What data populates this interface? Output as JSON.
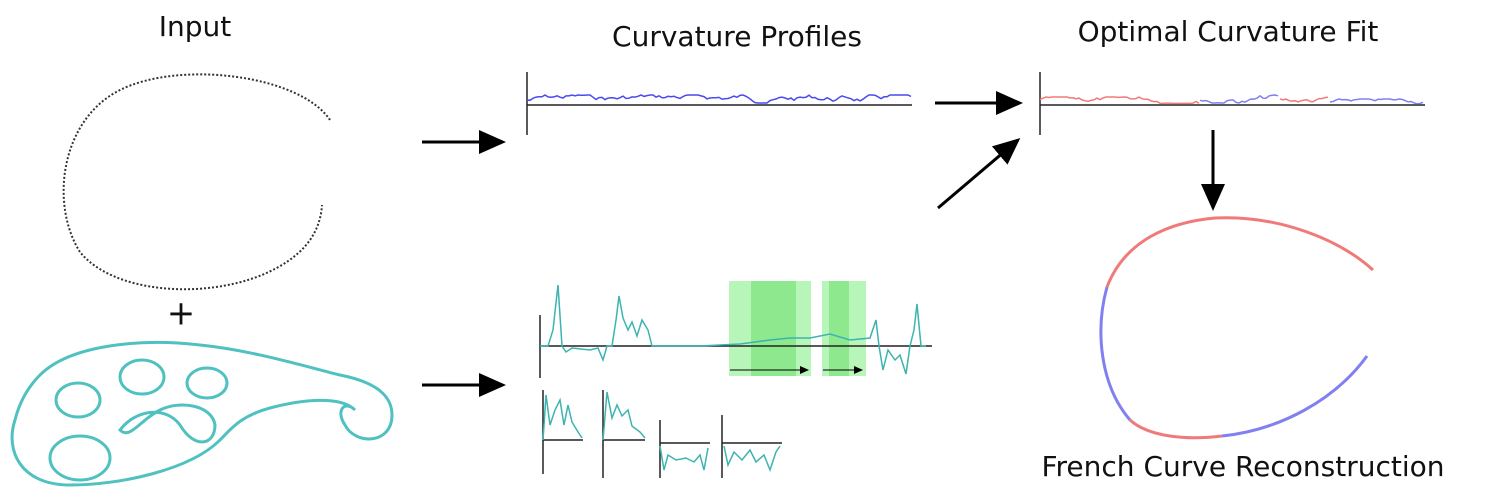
{
  "labels": {
    "input": "Input",
    "plus": "+",
    "curvature_profiles": "Curvature Profiles",
    "optimal_fit": "Optimal Curvature Fit",
    "reconstruction": "French Curve Reconstruction"
  }
}
